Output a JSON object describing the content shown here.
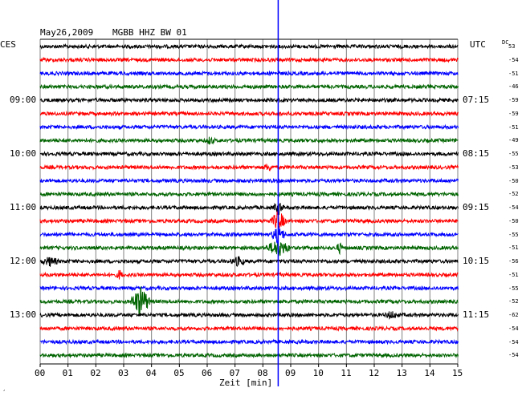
{
  "header": {
    "date": "May26,2009",
    "station": "MGBB HHZ BW 01"
  },
  "left_tz": "CES",
  "right_tz": "UTC",
  "dc_label": "DC",
  "xlabel": "Zeit [min]",
  "corner_mark": "¸",
  "colors": {
    "trace_cycle": [
      "#000000",
      "#ff0000",
      "#0000ff",
      "#006400"
    ],
    "grid": "#808080",
    "marker": "#0000ff"
  },
  "chart_data": {
    "type": "line",
    "title": "May26,2009  MGBB HHZ BW 01",
    "xlabel": "Zeit [min]",
    "xlim": [
      0,
      15
    ],
    "x_ticks": [
      "00",
      "01",
      "02",
      "03",
      "04",
      "05",
      "06",
      "07",
      "08",
      "09",
      "10",
      "11",
      "12",
      "13",
      "14",
      "15"
    ],
    "rows_per_hour": 4,
    "left_time_labels": [
      {
        "row": 4,
        "label": "09:00"
      },
      {
        "row": 8,
        "label": "10:00"
      },
      {
        "row": 12,
        "label": "11:00"
      },
      {
        "row": 16,
        "label": "12:00"
      },
      {
        "row": 20,
        "label": "13:00"
      }
    ],
    "right_time_labels": [
      {
        "row": 4,
        "label": "07:15"
      },
      {
        "row": 8,
        "label": "08:15"
      },
      {
        "row": 12,
        "label": "09:15"
      },
      {
        "row": 16,
        "label": "10:15"
      },
      {
        "row": 20,
        "label": "11:15"
      }
    ],
    "dc_offsets": [
      "53",
      "-54",
      "-51",
      "-46",
      "-59",
      "-59",
      "-51",
      "-49",
      "-55",
      "-53",
      "-50",
      "-52",
      "-54",
      "-50",
      "-55",
      "-51",
      "-56",
      "-51",
      "-55",
      "-52",
      "-62",
      "-54",
      "-54",
      "-54"
    ],
    "marker_minute": 8.55,
    "events": [
      {
        "row": 15,
        "minute": 8.55,
        "amplitude": 10,
        "duration_min": 0.5
      },
      {
        "row": 15,
        "minute": 10.75,
        "amplitude": 6,
        "duration_min": 0.15
      },
      {
        "row": 16,
        "minute": 0.35,
        "amplitude": 5,
        "duration_min": 0.35
      },
      {
        "row": 16,
        "minute": 7.1,
        "amplitude": 5,
        "duration_min": 0.3
      },
      {
        "row": 17,
        "minute": 2.85,
        "amplitude": 5,
        "duration_min": 0.15
      },
      {
        "row": 19,
        "minute": 3.6,
        "amplitude": 18,
        "duration_min": 0.4
      },
      {
        "row": 7,
        "minute": 6.1,
        "amplitude": 4,
        "duration_min": 0.2
      },
      {
        "row": 12,
        "minute": 8.55,
        "amplitude": 8,
        "duration_min": 0.2
      },
      {
        "row": 13,
        "minute": 8.55,
        "amplitude": 12,
        "duration_min": 0.3
      },
      {
        "row": 14,
        "minute": 8.55,
        "amplitude": 10,
        "duration_min": 0.3
      },
      {
        "row": 9,
        "minute": 8.2,
        "amplitude": 4,
        "duration_min": 0.2
      },
      {
        "row": 20,
        "minute": 12.6,
        "amplitude": 4,
        "duration_min": 0.3
      }
    ]
  }
}
